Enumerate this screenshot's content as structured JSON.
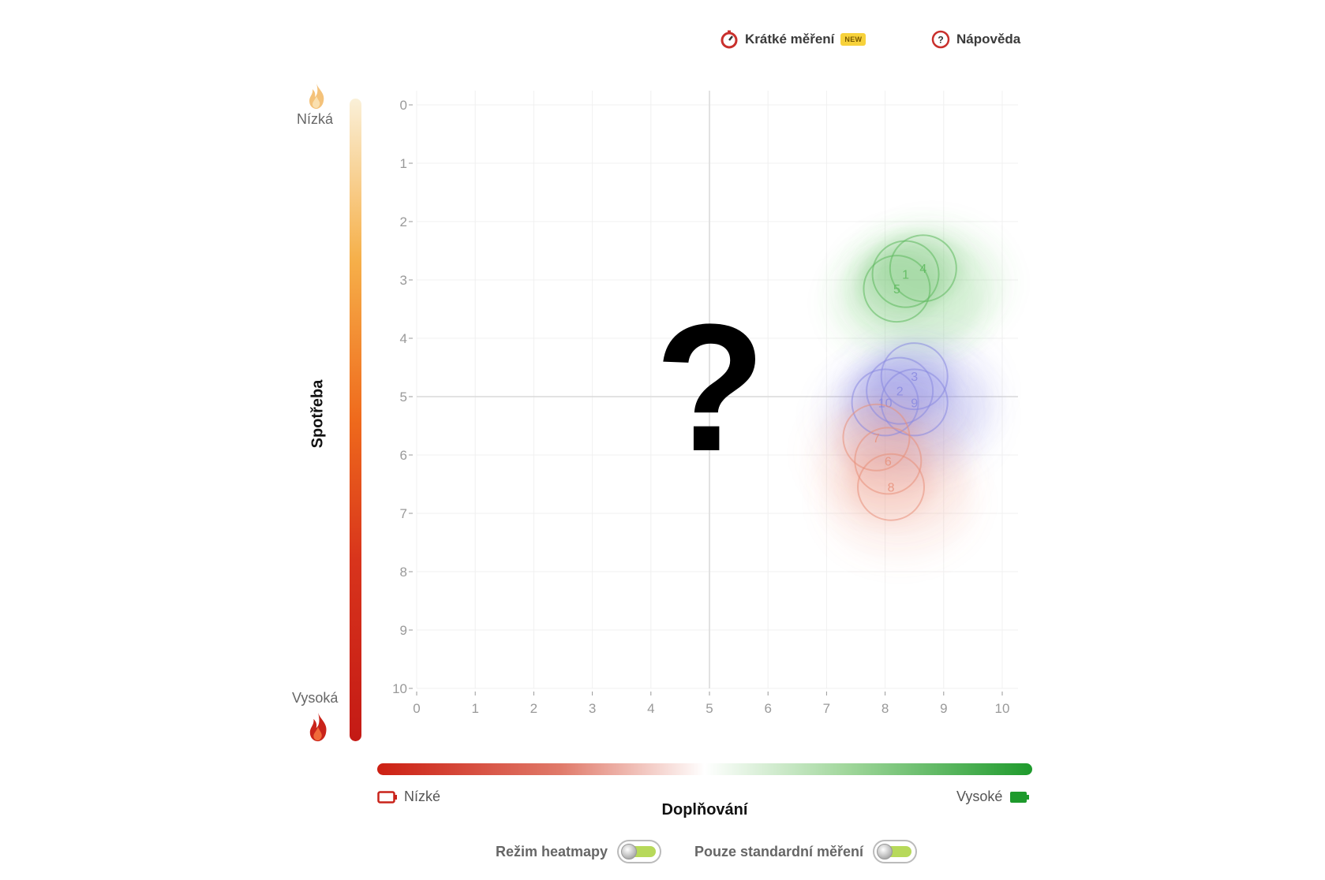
{
  "header": {
    "short_measurement_label": "Krátké měření",
    "new_badge": "NEW",
    "help_label": "Nápověda",
    "short_measurement_icon": "stopwatch-icon",
    "help_icon": "question-circle-icon"
  },
  "y_axis": {
    "title": "Spotřeba",
    "top_label": "Nízká",
    "bottom_label": "Vysoká",
    "top_icon": "flame-icon",
    "bottom_icon": "flame-icon",
    "gradient_colors": [
      "#f7e3b0",
      "#f6a53a",
      "#ef6a1c",
      "#d8341c",
      "#c41a15"
    ]
  },
  "x_axis": {
    "title": "Doplňování",
    "left_label": "Nízké",
    "right_label": "Vysoké",
    "left_icon": "battery-empty-icon",
    "right_icon": "battery-full-icon",
    "gradient_colors": [
      "#cc1f12",
      "#ffffff",
      "#1e9a2c"
    ]
  },
  "overlay": {
    "symbol": "?"
  },
  "toggles": [
    {
      "label": "Režim heatmapy",
      "on": true
    },
    {
      "label": "Pouze standardní měření",
      "on": true
    }
  ],
  "chart_data": {
    "type": "scatter",
    "xlim": [
      0,
      10
    ],
    "ylim": [
      0,
      10
    ],
    "y_inverted": true,
    "x_ticks": [
      0,
      1,
      2,
      3,
      4,
      5,
      6,
      7,
      8,
      9,
      10
    ],
    "y_ticks": [
      0,
      1,
      2,
      3,
      4,
      5,
      6,
      7,
      8,
      9,
      10
    ],
    "grid": true,
    "reference_lines": {
      "x": 5,
      "y": 5
    },
    "heatmap_mode": true,
    "points": [
      {
        "label": "1",
        "x": 8.35,
        "y": 2.9,
        "group": "green"
      },
      {
        "label": "4",
        "x": 8.65,
        "y": 2.8,
        "group": "green"
      },
      {
        "label": "5",
        "x": 8.2,
        "y": 3.15,
        "group": "green"
      },
      {
        "label": "3",
        "x": 8.5,
        "y": 4.65,
        "group": "blue"
      },
      {
        "label": "2",
        "x": 8.25,
        "y": 4.9,
        "group": "blue"
      },
      {
        "label": "9",
        "x": 8.5,
        "y": 5.1,
        "group": "blue"
      },
      {
        "label": "10",
        "x": 8.0,
        "y": 5.1,
        "group": "blue"
      },
      {
        "label": "7",
        "x": 7.85,
        "y": 5.7,
        "group": "red"
      },
      {
        "label": "6",
        "x": 8.05,
        "y": 6.1,
        "group": "red"
      },
      {
        "label": "8",
        "x": 8.1,
        "y": 6.55,
        "group": "red"
      }
    ],
    "group_colors": {
      "green": "#5cb85c",
      "blue": "#8888e0",
      "red": "#e8907a"
    }
  }
}
